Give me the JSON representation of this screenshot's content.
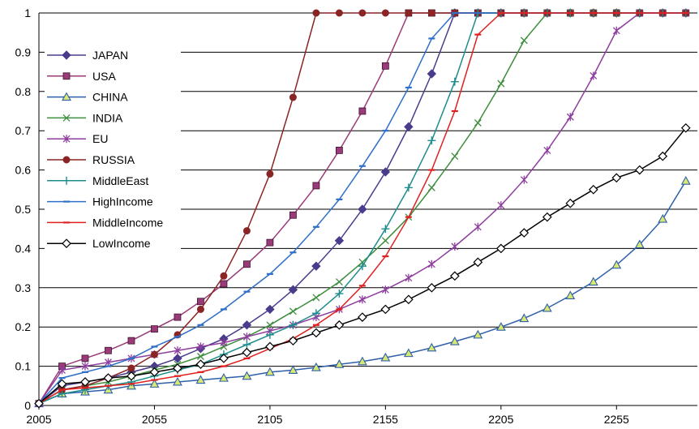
{
  "chart_data": {
    "type": "line",
    "title": "",
    "xlabel": "",
    "ylabel": "",
    "xlim": [
      2005,
      2290
    ],
    "ylim": [
      0,
      1
    ],
    "x_ticks": [
      2005,
      2055,
      2105,
      2155,
      2205,
      2255
    ],
    "y_ticks": [
      0,
      0.1,
      0.2,
      0.3,
      0.4,
      0.5,
      0.6,
      0.7,
      0.8,
      0.9,
      1
    ],
    "x_tick_labels": [
      "2005",
      "2055",
      "2105",
      "2155",
      "2205",
      "2255"
    ],
    "y_tick_labels": [
      "0",
      "0.1",
      "0.2",
      "0.3",
      "0.4",
      "0.5",
      "0.6",
      "0.7",
      "0.8",
      "0.9",
      "1"
    ],
    "grid": "horizontal",
    "legend_position": "top-left",
    "x": [
      2005,
      2015,
      2025,
      2035,
      2045,
      2055,
      2065,
      2075,
      2085,
      2095,
      2105,
      2115,
      2125,
      2135,
      2145,
      2155,
      2165,
      2175,
      2185,
      2195,
      2205,
      2215,
      2225,
      2235,
      2245,
      2255,
      2265,
      2275,
      2285
    ],
    "series": [
      {
        "name": "JAPAN",
        "color": "#4B3B8C",
        "marker": "diamond",
        "values": [
          0.005,
          0.05,
          0.06,
          0.07,
          0.085,
          0.1,
          0.12,
          0.145,
          0.17,
          0.205,
          0.245,
          0.295,
          0.355,
          0.42,
          0.5,
          0.595,
          0.71,
          0.845,
          1,
          1,
          1,
          1,
          1,
          1,
          1,
          1,
          1,
          1,
          1
        ]
      },
      {
        "name": "USA",
        "color": "#9B3A78",
        "marker": "square",
        "values": [
          0.005,
          0.1,
          0.12,
          0.14,
          0.165,
          0.195,
          0.225,
          0.265,
          0.31,
          0.36,
          0.415,
          0.485,
          0.56,
          0.65,
          0.75,
          0.865,
          1,
          1,
          1,
          1,
          1,
          1,
          1,
          1,
          1,
          1,
          1,
          1,
          1
        ]
      },
      {
        "name": "CHINA",
        "color": "#2E5FAA",
        "marker": "triangle",
        "values": [
          0.005,
          0.03,
          0.035,
          0.04,
          0.05,
          0.055,
          0.06,
          0.065,
          0.07,
          0.075,
          0.085,
          0.09,
          0.097,
          0.105,
          0.112,
          0.122,
          0.133,
          0.147,
          0.163,
          0.18,
          0.2,
          0.222,
          0.248,
          0.28,
          0.315,
          0.358,
          0.41,
          0.475,
          0.572
        ]
      },
      {
        "name": "INDIA",
        "color": "#3E8E3E",
        "marker": "x",
        "values": [
          0.005,
          0.04,
          0.05,
          0.06,
          0.075,
          0.09,
          0.105,
          0.125,
          0.15,
          0.175,
          0.205,
          0.24,
          0.275,
          0.315,
          0.365,
          0.42,
          0.48,
          0.555,
          0.635,
          0.72,
          0.82,
          0.93,
          1,
          1,
          1,
          1,
          1,
          1,
          1
        ]
      },
      {
        "name": "EU",
        "color": "#8E3E9E",
        "marker": "star",
        "values": [
          0.005,
          0.09,
          0.1,
          0.11,
          0.12,
          0.13,
          0.14,
          0.15,
          0.16,
          0.175,
          0.19,
          0.205,
          0.225,
          0.245,
          0.27,
          0.295,
          0.325,
          0.36,
          0.405,
          0.455,
          0.51,
          0.575,
          0.65,
          0.735,
          0.84,
          0.955,
          1,
          1,
          1
        ]
      },
      {
        "name": "RUSSIA",
        "color": "#8B2525",
        "marker": "circle",
        "values": [
          0.005,
          0.04,
          0.05,
          0.07,
          0.095,
          0.13,
          0.18,
          0.245,
          0.33,
          0.445,
          0.59,
          0.785,
          1,
          1,
          1,
          1,
          1,
          1,
          1,
          1,
          1,
          1,
          1,
          1,
          1,
          1,
          1,
          1,
          1
        ]
      },
      {
        "name": "MiddleEast",
        "color": "#1F8C8C",
        "marker": "plus",
        "values": [
          0.005,
          0.03,
          0.04,
          0.05,
          0.06,
          0.075,
          0.09,
          0.105,
          0.13,
          0.155,
          0.18,
          0.205,
          0.235,
          0.285,
          0.355,
          0.45,
          0.555,
          0.675,
          0.825,
          1,
          1,
          1,
          1,
          1,
          1,
          1,
          1,
          1,
          1
        ]
      },
      {
        "name": "HighIncome",
        "color": "#2E6FC8",
        "marker": "dash",
        "values": [
          0.005,
          0.07,
          0.085,
          0.1,
          0.12,
          0.15,
          0.175,
          0.205,
          0.245,
          0.29,
          0.335,
          0.39,
          0.455,
          0.525,
          0.61,
          0.7,
          0.81,
          0.935,
          1,
          1,
          1,
          1,
          1,
          1,
          1,
          1,
          1,
          1,
          1
        ]
      },
      {
        "name": "MiddleIncome",
        "color": "#E02020",
        "marker": "dash",
        "values": [
          0.005,
          0.04,
          0.045,
          0.05,
          0.055,
          0.065,
          0.075,
          0.085,
          0.1,
          0.12,
          0.145,
          0.17,
          0.205,
          0.245,
          0.305,
          0.38,
          0.48,
          0.6,
          0.75,
          0.945,
          1,
          1,
          1,
          1,
          1,
          1,
          1,
          1,
          1
        ]
      },
      {
        "name": "LowIncome",
        "color": "#000000",
        "marker": "open-diamond",
        "values": [
          0.005,
          0.055,
          0.06,
          0.07,
          0.075,
          0.085,
          0.095,
          0.105,
          0.12,
          0.135,
          0.15,
          0.165,
          0.185,
          0.205,
          0.225,
          0.245,
          0.27,
          0.3,
          0.33,
          0.365,
          0.4,
          0.44,
          0.48,
          0.515,
          0.55,
          0.58,
          0.6,
          0.635,
          0.707
        ]
      }
    ]
  }
}
